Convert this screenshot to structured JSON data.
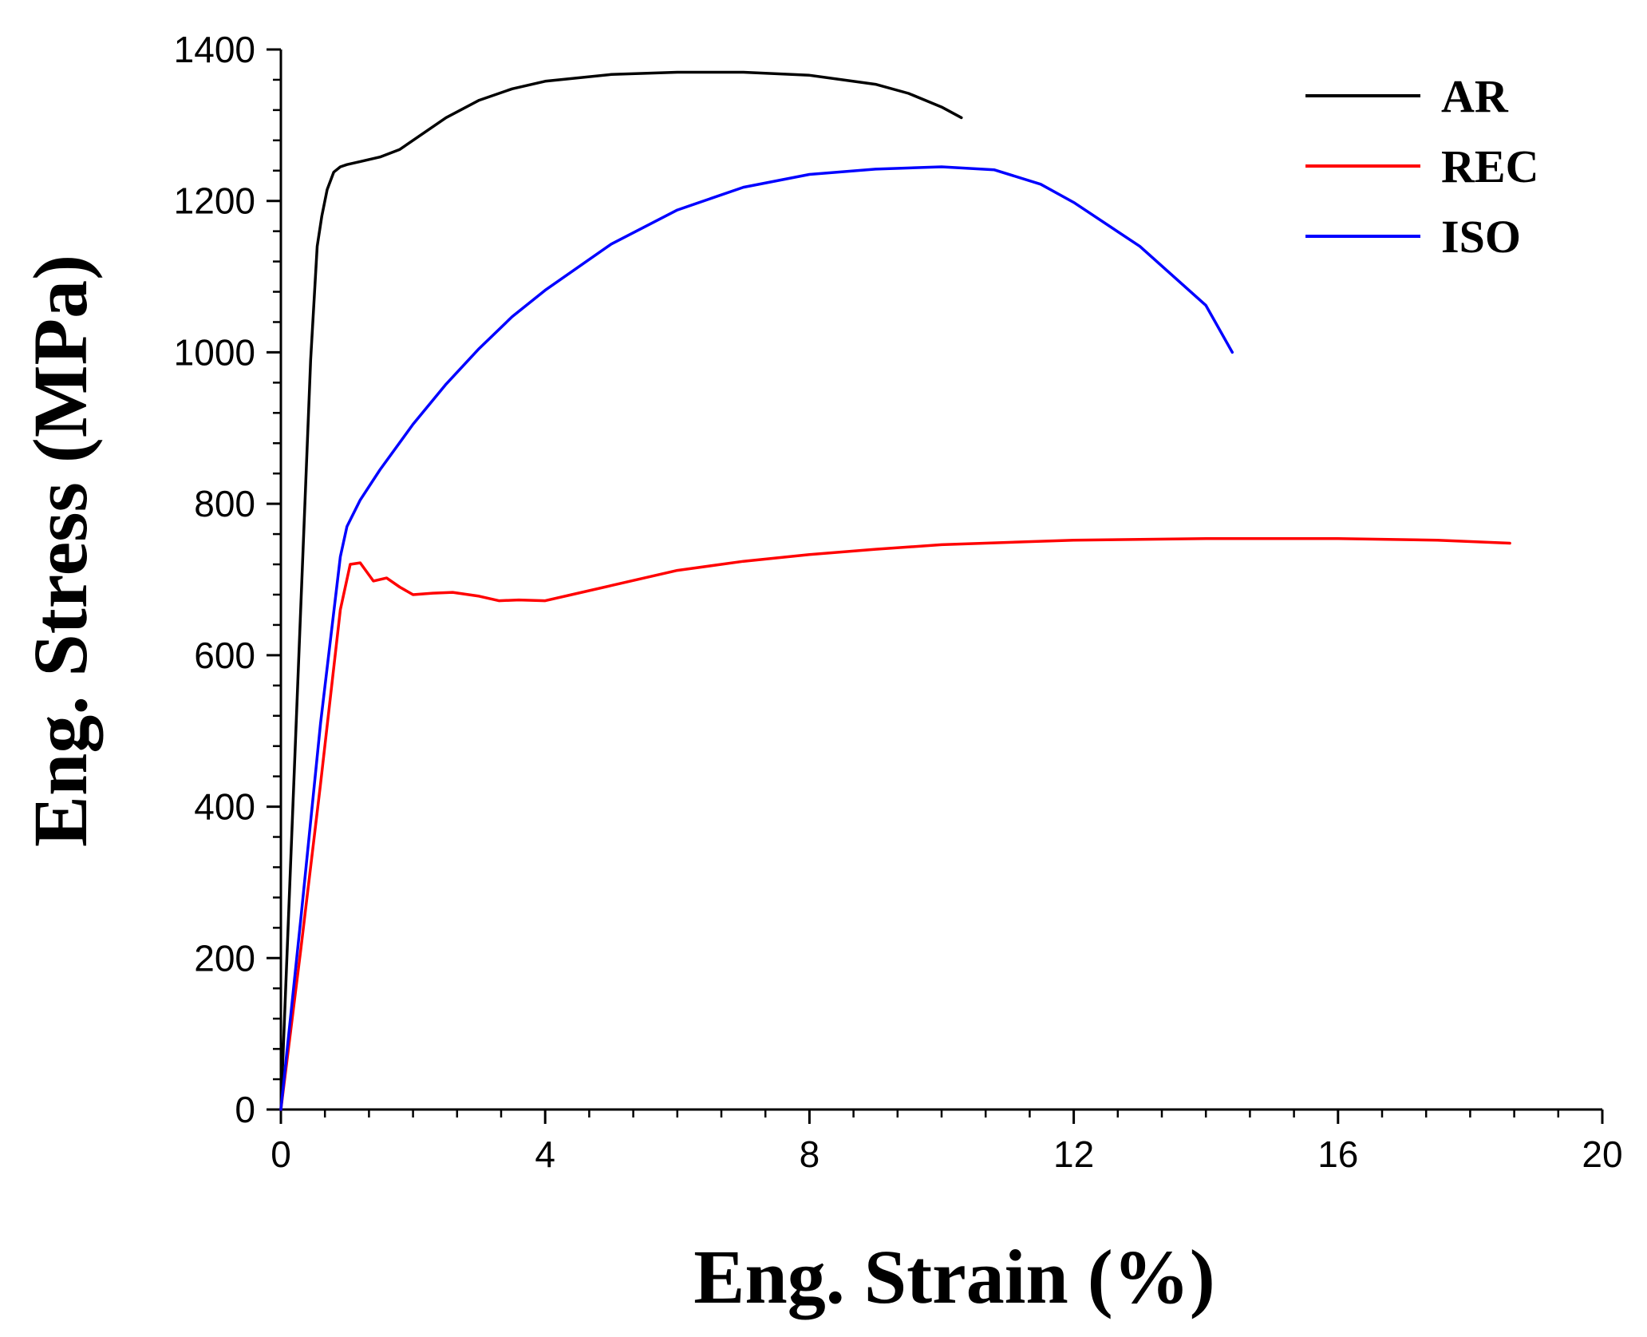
{
  "chart_data": {
    "type": "line",
    "title": "",
    "xlabel": "Eng. Strain (%)",
    "ylabel": "Eng. Stress (MPa)",
    "xlim": [
      0,
      20
    ],
    "ylim": [
      0,
      1400
    ],
    "x_ticks": [
      "0",
      "4",
      "8",
      "12",
      "16",
      "20"
    ],
    "y_ticks": [
      "0",
      "200",
      "400",
      "600",
      "800",
      "1000",
      "1200",
      "1400"
    ],
    "legend_position": "top-right",
    "series": [
      {
        "name": "AR",
        "color": "#000000",
        "x": [
          0,
          0.15,
          0.3,
          0.45,
          0.55,
          0.62,
          0.7,
          0.8,
          0.9,
          1.0,
          1.2,
          1.5,
          1.8,
          2.0,
          2.5,
          3.0,
          3.5,
          4.0,
          5.0,
          6.0,
          7.0,
          8.0,
          9.0,
          9.5,
          10.0,
          10.3
        ],
        "y": [
          0,
          330,
          660,
          990,
          1140,
          1180,
          1215,
          1238,
          1245,
          1248,
          1252,
          1258,
          1268,
          1280,
          1310,
          1333,
          1348,
          1358,
          1367,
          1370,
          1370,
          1366,
          1354,
          1342,
          1324,
          1310
        ]
      },
      {
        "name": "REC",
        "color": "#ff0000",
        "x": [
          0,
          0.3,
          0.6,
          0.9,
          1.05,
          1.2,
          1.4,
          1.6,
          1.8,
          2.0,
          2.3,
          2.6,
          3.0,
          3.3,
          3.6,
          4.0,
          4.4,
          5.0,
          6.0,
          7.0,
          8.0,
          9.0,
          10.0,
          12.0,
          14.0,
          16.0,
          17.5,
          18.6
        ],
        "y": [
          0,
          210,
          430,
          660,
          720,
          722,
          698,
          702,
          690,
          680,
          682,
          683,
          678,
          672,
          673,
          672,
          680,
          692,
          712,
          724,
          733,
          740,
          746,
          752,
          754,
          754,
          752,
          748
        ]
      },
      {
        "name": "ISO",
        "color": "#0000ff",
        "x": [
          0,
          0.3,
          0.6,
          0.9,
          1.0,
          1.2,
          1.5,
          2.0,
          2.5,
          3.0,
          3.5,
          4.0,
          5.0,
          6.0,
          7.0,
          8.0,
          9.0,
          10.0,
          10.8,
          11.5,
          12.0,
          13.0,
          14.0,
          14.4
        ],
        "y": [
          0,
          250,
          510,
          730,
          770,
          805,
          845,
          905,
          958,
          1005,
          1047,
          1082,
          1143,
          1188,
          1218,
          1235,
          1242,
          1245,
          1241,
          1222,
          1198,
          1140,
          1062,
          1000
        ]
      }
    ]
  }
}
